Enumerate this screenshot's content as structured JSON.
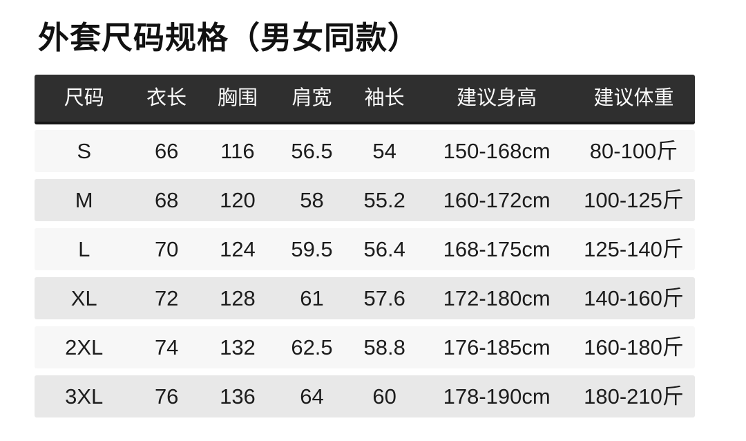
{
  "title": "外套尺码规格（男女同款）",
  "colors": {
    "page_background": "#ffffff",
    "header_background": "#2f2f2f",
    "header_text": "#fafafa",
    "row_light": "#f7f7f7",
    "row_dark": "#e8e8e8",
    "body_text": "#1c1c1c",
    "title_text": "#111111"
  },
  "chart_data": {
    "type": "table",
    "title": "外套尺码规格（男女同款）",
    "columns": [
      "尺码",
      "衣长",
      "胸围",
      "肩宽",
      "袖长",
      "建议身高",
      "建议体重"
    ],
    "rows": [
      [
        "S",
        "66",
        "116",
        "56.5",
        "54",
        "150-168cm",
        "80-100斤"
      ],
      [
        "M",
        "68",
        "120",
        "58",
        "55.2",
        "160-172cm",
        "100-125斤"
      ],
      [
        "L",
        "70",
        "124",
        "59.5",
        "56.4",
        "168-175cm",
        "125-140斤"
      ],
      [
        "XL",
        "72",
        "128",
        "61",
        "57.6",
        "172-180cm",
        "140-160斤"
      ],
      [
        "2XL",
        "74",
        "132",
        "62.5",
        "58.8",
        "176-185cm",
        "160-180斤"
      ],
      [
        "3XL",
        "76",
        "136",
        "64",
        "60",
        "178-190cm",
        "180-210斤"
      ]
    ]
  }
}
